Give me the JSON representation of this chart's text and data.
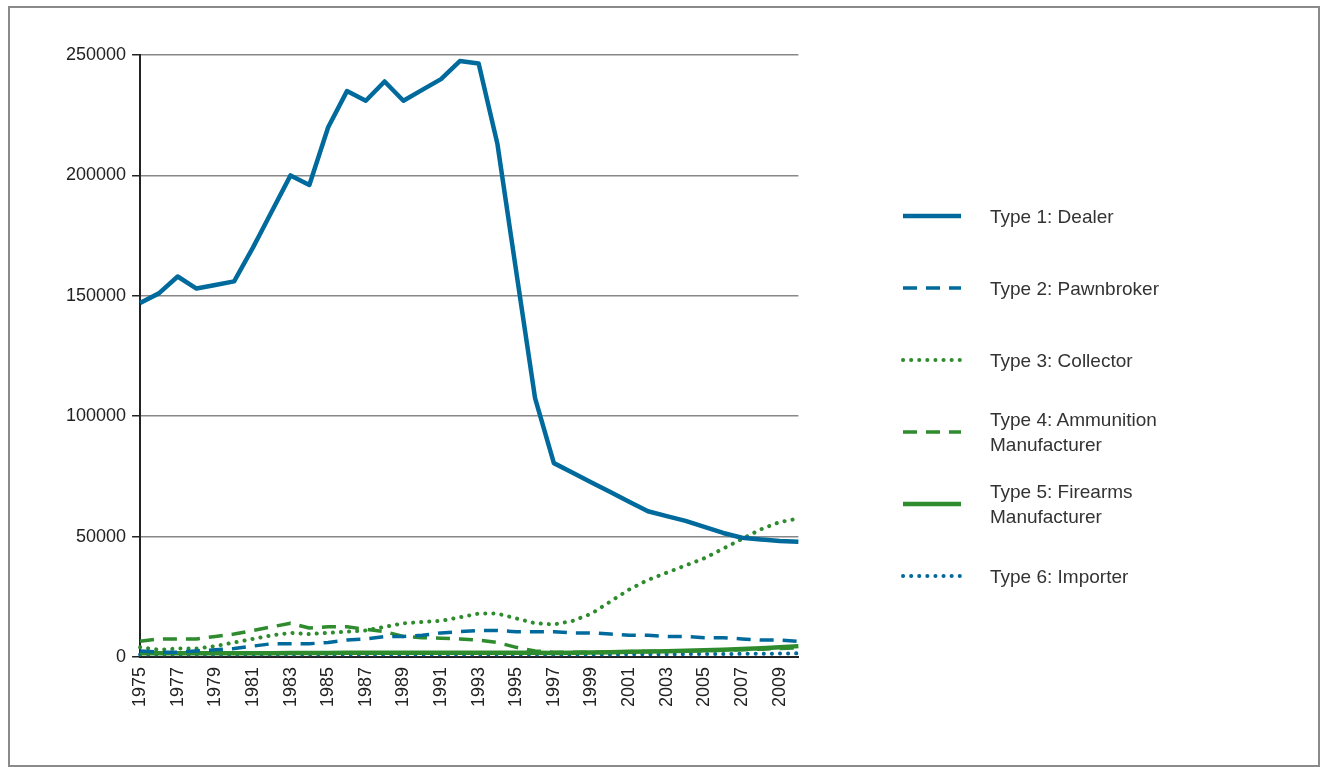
{
  "chart_data": {
    "type": "line",
    "categories": [
      "1975",
      null,
      "1977",
      null,
      "1979",
      null,
      "1981",
      null,
      "1983",
      null,
      "1985",
      null,
      "1987",
      null,
      "1989",
      null,
      "1991",
      null,
      "1993",
      null,
      "1995",
      null,
      "1997",
      null,
      "1999",
      null,
      "2001",
      null,
      "2003",
      null,
      "2005",
      null,
      "2007",
      null,
      "2009",
      null
    ],
    "ylim": [
      0,
      250000
    ],
    "yticks": [
      0,
      50000,
      100000,
      150000,
      200000,
      250000
    ],
    "grid": "y",
    "legend": "right",
    "marker": "none",
    "series": [
      {
        "name": "Type 1: Dealer",
        "color": "#006a9c",
        "line_style": "solid",
        "values": [
          147000,
          151000,
          158000,
          153000,
          154500,
          156000,
          170000,
          185000,
          200000,
          196000,
          220000,
          235000,
          231000,
          239000,
          231000,
          235500,
          240000,
          247500,
          246500,
          213000,
          160000,
          107500,
          80500,
          76500,
          72500,
          68500,
          64500,
          60500,
          58500,
          56500,
          54000,
          51500,
          49500,
          48800,
          48200,
          47800
        ]
      },
      {
        "name": "Type 2: Pawnbroker",
        "color": "#006a9c",
        "line_style": "dashed",
        "values": [
          2500,
          2000,
          2000,
          2500,
          3000,
          3500,
          4500,
          5500,
          5500,
          5500,
          6000,
          7000,
          7500,
          8500,
          8500,
          9000,
          10000,
          10500,
          11000,
          11000,
          10500,
          10500,
          10500,
          10000,
          10000,
          9500,
          9000,
          9000,
          8500,
          8500,
          8000,
          8000,
          7500,
          7000,
          7000,
          6500
        ]
      },
      {
        "name": "Type 3: Collector",
        "color": "#2e8b2e",
        "line_style": "dotted",
        "values": [
          4000,
          3000,
          3500,
          3500,
          4500,
          6000,
          7500,
          9000,
          10000,
          9500,
          10000,
          10500,
          11000,
          12500,
          14000,
          14500,
          15000,
          16500,
          18000,
          18000,
          16000,
          14000,
          13500,
          15000,
          18000,
          23000,
          28000,
          32000,
          35000,
          38000,
          41000,
          45000,
          49000,
          53000,
          56000,
          57500
        ]
      },
      {
        "name": "Type 4: Ammunition Manufacturer",
        "color": "#2e8b2e",
        "line_style": "dashed",
        "values": [
          6500,
          7500,
          7500,
          7500,
          8500,
          9500,
          11000,
          12500,
          14000,
          12000,
          12500,
          12500,
          11500,
          10500,
          8500,
          8000,
          7800,
          7500,
          7000,
          6000,
          4000,
          2500,
          2000,
          2000,
          2000,
          2000,
          2200,
          2300,
          2400,
          2500,
          2600,
          2800,
          3000,
          3200,
          3500,
          3800
        ]
      },
      {
        "name": "Type 5: Firearms Manufacturer",
        "color": "#2e8b2e",
        "line_style": "solid",
        "values": [
          1500,
          1500,
          1500,
          1500,
          1500,
          1500,
          1500,
          1500,
          1600,
          1600,
          1600,
          1700,
          1700,
          1700,
          1700,
          1700,
          1700,
          1700,
          1700,
          1700,
          1700,
          1700,
          1600,
          1700,
          1800,
          2000,
          2200,
          2300,
          2400,
          2600,
          2800,
          3000,
          3300,
          3600,
          4000,
          4500
        ]
      },
      {
        "name": "Type 6: Importer",
        "color": "#006a9c",
        "line_style": "dotted",
        "values": [
          1000,
          1000,
          1000,
          1000,
          1000,
          1000,
          1000,
          1000,
          1000,
          1000,
          1000,
          1000,
          1000,
          1000,
          1000,
          1000,
          1000,
          1000,
          1000,
          1000,
          1000,
          1000,
          1000,
          1000,
          1000,
          1000,
          1100,
          1100,
          1100,
          1200,
          1200,
          1200,
          1300,
          1300,
          1400,
          1500
        ]
      }
    ]
  }
}
